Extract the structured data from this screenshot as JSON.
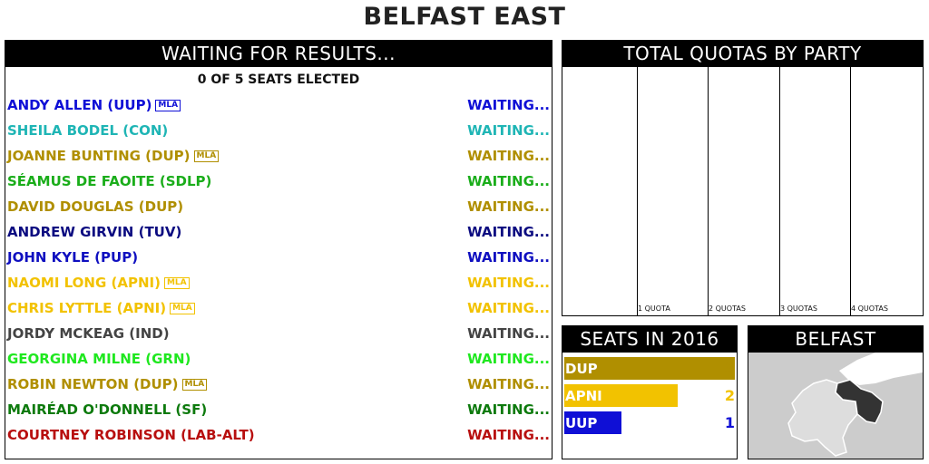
{
  "page_title": "BELFAST EAST",
  "results": {
    "header": "WAITING FOR RESULTS...",
    "seats_elected": "0 OF 5 SEATS ELECTED",
    "candidates": [
      {
        "name": "ANDY ALLEN (UUP)",
        "mla": "MLA",
        "status": "WAITING...",
        "color": "#0f0fd6"
      },
      {
        "name": "SHEILA BODEL (CON)",
        "mla": "",
        "status": "WAITING...",
        "color": "#1fb5b5"
      },
      {
        "name": "JOANNE BUNTING (DUP)",
        "mla": "MLA",
        "status": "WAITING...",
        "color": "#b08f00"
      },
      {
        "name": "SÉAMUS DE FAOITE (SDLP)",
        "mla": "",
        "status": "WAITING...",
        "color": "#1aad1a"
      },
      {
        "name": "DAVID DOUGLAS (DUP)",
        "mla": "",
        "status": "WAITING...",
        "color": "#b08f00"
      },
      {
        "name": "ANDREW GIRVIN (TUV)",
        "mla": "",
        "status": "WAITING...",
        "color": "#0b0b80"
      },
      {
        "name": "JOHN KYLE (PUP)",
        "mla": "",
        "status": "WAITING...",
        "color": "#0f0fc0"
      },
      {
        "name": "NAOMI LONG (APNI)",
        "mla": "MLA",
        "status": "WAITING...",
        "color": "#f2c200"
      },
      {
        "name": "CHRIS LYTTLE (APNI)",
        "mla": "MLA",
        "status": "WAITING...",
        "color": "#f2c200"
      },
      {
        "name": "JORDY MCKEAG (IND)",
        "mla": "",
        "status": "WAITING...",
        "color": "#444444"
      },
      {
        "name": "GEORGINA MILNE (GRN)",
        "mla": "",
        "status": "WAITING...",
        "color": "#1fe81f"
      },
      {
        "name": "ROBIN NEWTON (DUP)",
        "mla": "MLA",
        "status": "WAITING...",
        "color": "#b08f00"
      },
      {
        "name": "MAIRÉAD O'DONNELL (SF)",
        "mla": "",
        "status": "WAITING...",
        "color": "#0d7a0d"
      },
      {
        "name": "COURTNEY ROBINSON (LAB-ALT)",
        "mla": "",
        "status": "WAITING...",
        "color": "#b80f0f"
      }
    ]
  },
  "quotas": {
    "header": "TOTAL QUOTAS BY PARTY",
    "quota_labels": [
      "1 QUOTA",
      "2 QUOTAS",
      "3 QUOTAS",
      "4 QUOTAS"
    ]
  },
  "seats_2016": {
    "header": "SEATS IN 2016",
    "max": 3,
    "bars": [
      {
        "party": "DUP",
        "seats": 3,
        "color": "#b08f00"
      },
      {
        "party": "APNI",
        "seats": 2,
        "color": "#f2c200"
      },
      {
        "party": "UUP",
        "seats": 1,
        "color": "#0f0fd6"
      }
    ]
  },
  "map": {
    "header": "BELFAST",
    "colors": {
      "background": "#cccccc",
      "region": "#dddddd",
      "highlight": "#333333",
      "border": "#ffffff"
    }
  }
}
